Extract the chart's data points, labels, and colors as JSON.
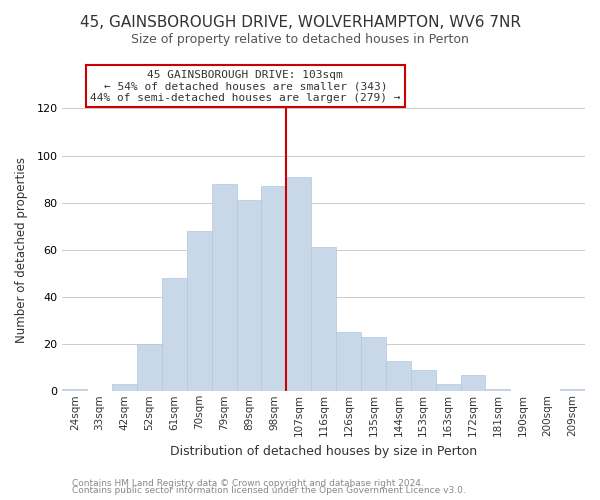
{
  "title": "45, GAINSBOROUGH DRIVE, WOLVERHAMPTON, WV6 7NR",
  "subtitle": "Size of property relative to detached houses in Perton",
  "xlabel": "Distribution of detached houses by size in Perton",
  "ylabel": "Number of detached properties",
  "categories": [
    "24sqm",
    "33sqm",
    "42sqm",
    "52sqm",
    "61sqm",
    "70sqm",
    "79sqm",
    "89sqm",
    "98sqm",
    "107sqm",
    "116sqm",
    "126sqm",
    "135sqm",
    "144sqm",
    "153sqm",
    "163sqm",
    "172sqm",
    "181sqm",
    "190sqm",
    "200sqm",
    "209sqm"
  ],
  "values": [
    1,
    0,
    3,
    20,
    48,
    68,
    88,
    81,
    87,
    91,
    61,
    25,
    23,
    13,
    9,
    3,
    7,
    1,
    0,
    0,
    1
  ],
  "bar_color": "#c8d8e8",
  "bar_edge_color": "#b0c8e0",
  "vline_color": "#cc0000",
  "annotation_line1": "45 GAINSBOROUGH DRIVE: 103sqm",
  "annotation_line2": "← 54% of detached houses are smaller (343)",
  "annotation_line3": "44% of semi-detached houses are larger (279) →",
  "annotation_box_edgecolor": "#cc0000",
  "annotation_box_facecolor": "#ffffff",
  "footer1": "Contains HM Land Registry data © Crown copyright and database right 2024.",
  "footer2": "Contains public sector information licensed under the Open Government Licence v3.0.",
  "ylim": [
    0,
    120
  ],
  "background_color": "#ffffff",
  "grid_color": "#cccccc",
  "title_fontsize": 11,
  "subtitle_fontsize": 9,
  "ylabel_fontsize": 8.5,
  "xlabel_fontsize": 9,
  "tick_fontsize": 7.5,
  "footer_fontsize": 6.5,
  "annot_fontsize": 8
}
